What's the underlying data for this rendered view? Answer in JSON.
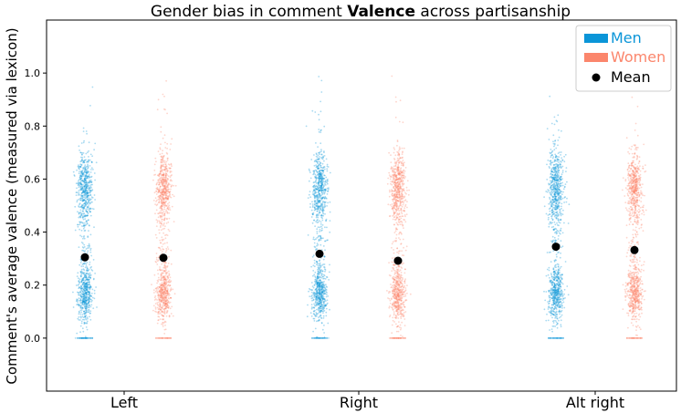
{
  "chart_data": {
    "type": "scatter",
    "title_prefix": "Gender bias in comment ",
    "title_bold": "Valence",
    "title_suffix": " across partisanship",
    "xlabel": "",
    "ylabel": "Comment's average valence (measured via lexicon)",
    "ylim": [
      -0.2,
      1.2
    ],
    "yticks": [
      "0.0",
      "0.2",
      "0.4",
      "0.6",
      "0.8",
      "1.0"
    ],
    "categories": [
      "Left",
      "Right",
      "Alt right"
    ],
    "grid": false,
    "legend_position": "top-right",
    "series": [
      {
        "name": "Men",
        "color": "#0a95d8",
        "means": [
          0.305,
          0.318,
          0.345
        ],
        "distribution": "bimodal, modes near 0.17 and 0.57, range 0.0 to 1.0"
      },
      {
        "name": "Women",
        "color": "#fb866c",
        "means": [
          0.303,
          0.292,
          0.332
        ],
        "distribution": "bimodal, modes near 0.17 and 0.57, range 0.0 to 1.0"
      }
    ],
    "mean_marker": {
      "name": "Mean",
      "color": "#000000"
    }
  }
}
